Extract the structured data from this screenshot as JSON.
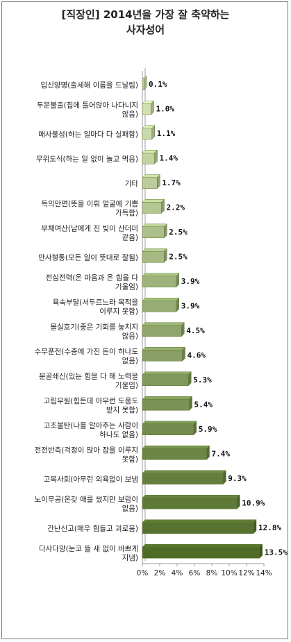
{
  "chart_data": {
    "type": "bar",
    "orientation": "horizontal",
    "title": "[직장인] 2014년을 가장 잘 축약하는\n사자성어",
    "categories": [
      [
        "입신양명(출세해 이름을 드날림)"
      ],
      [
        "두문불출(집에 틀어앉아 나다니지",
        "않음)"
      ],
      [
        "매사불성(하는 일마다 다 실패함)"
      ],
      [
        "무위도식(하는 일 없이 놀고 먹음)"
      ],
      [
        "기타"
      ],
      [
        "득의만면(뜻을 이뤄 얼굴에 기쁨",
        "가득함)"
      ],
      [
        "부채여산(남에게 진 빚이 산더미",
        "같음)"
      ],
      [
        "만사형통(모든 일이 뜻대로 잘됨)"
      ],
      [
        "전심전력(온 마음과 온 힘을 다",
        "기울임)"
      ],
      [
        "욕속부달(서두르느라 목적을",
        "이루지 못함)"
      ],
      [
        "몰실호기(좋은 기회를 놓치지",
        "않음)"
      ],
      [
        "수무푼전(수중에 가진 돈이 하나도",
        "없음)"
      ],
      [
        "분골쇄신(있는 힘을 다 해 노력을",
        "기울임)"
      ],
      [
        "고립무원(힘든데 아무런 도움도",
        "받지 못함)"
      ],
      [
        "고조불탄(나를 알아주는 사람이",
        "하나도 없음)"
      ],
      [
        "전전반측(걱정이 많아 잠을 이루지",
        "못함)"
      ],
      [
        "고목사회(아무런 의욕없이 보냄"
      ],
      [
        "노이무공(온갖 애를 썼지만 보람이",
        "없음)"
      ],
      [
        "간난신고(매우 힘들고 괴로움)"
      ],
      [
        "다사다망(눈코 뜰 새 없이 바쁘게",
        "지냄)"
      ]
    ],
    "values": [
      0.1,
      1.0,
      1.1,
      1.4,
      1.7,
      2.2,
      2.5,
      2.5,
      3.9,
      3.9,
      4.5,
      4.6,
      5.3,
      5.4,
      5.9,
      7.4,
      9.3,
      10.9,
      12.8,
      13.5
    ],
    "value_labels": [
      "0.1%",
      "1.0%",
      "1.1%",
      "1.4%",
      "1.7%",
      "2.2%",
      "2.5%",
      "2.5%",
      "3.9%",
      "3.9%",
      "4.5%",
      "4.6%",
      "5.3%",
      "5.4%",
      "5.9%",
      "7.4%",
      "9.3%",
      "10.9%",
      "12.8%",
      "13.5%"
    ],
    "xlim": [
      0,
      14
    ],
    "xticks": [
      0,
      2,
      4,
      6,
      8,
      10,
      12,
      14
    ],
    "xtick_labels": [
      "0%",
      "2%",
      "4%",
      "6%",
      "8%",
      "10%",
      "12%",
      "14%"
    ],
    "bar_style": "3d-gradient",
    "colors": {
      "light_face": "#d8e6b8",
      "dark_face": "#4f6b28",
      "edge": "#5d7a30",
      "axis": "#999999"
    }
  }
}
